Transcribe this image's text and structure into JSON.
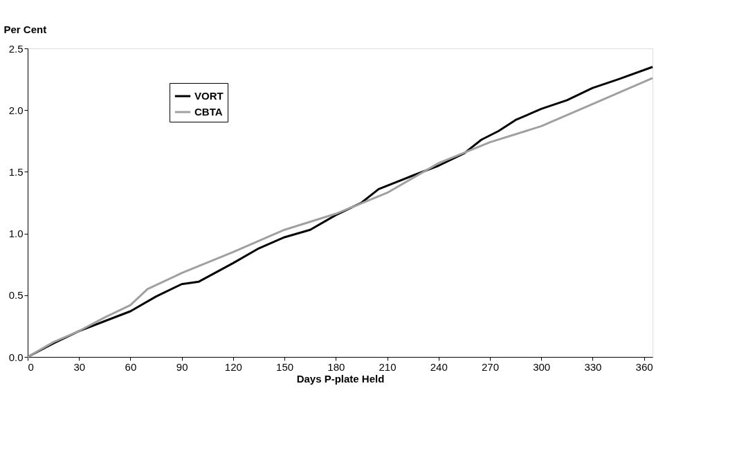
{
  "chart_data": {
    "type": "line",
    "xlabel": "Days  P-plate  Held",
    "ylabel": "Per  Cent",
    "xlim": [
      0,
      365
    ],
    "xticks": [
      0,
      30,
      60,
      90,
      120,
      150,
      180,
      210,
      240,
      270,
      300,
      330,
      360
    ],
    "ylim": [
      0,
      2.5
    ],
    "yticks": [
      {
        "value": 0,
        "label": "0.0"
      },
      0.5,
      {
        "value": 1,
        "label": "1.0"
      },
      1.5,
      {
        "value": 2,
        "label": "2.0"
      },
      2.5
    ],
    "grid": false,
    "legend": "top left",
    "marker": "none",
    "line_style": "solid",
    "series": [
      {
        "name": "VORT",
        "color": "#000000",
        "x": [
          0,
          15,
          30,
          45,
          60,
          75,
          90,
          100,
          120,
          135,
          150,
          165,
          180,
          195,
          205,
          225,
          240,
          255,
          265,
          275,
          285,
          300,
          315,
          330,
          345,
          365
        ],
        "values": [
          0,
          0.11,
          0.21,
          0.29,
          0.37,
          0.49,
          0.59,
          0.61,
          0.76,
          0.88,
          0.97,
          1.03,
          1.15,
          1.25,
          1.36,
          1.47,
          1.55,
          1.65,
          1.76,
          1.83,
          1.92,
          2.01,
          2.08,
          2.18,
          2.25,
          2.35
        ]
      },
      {
        "name": "CBTA",
        "color": "#a0a0a0",
        "x": [
          0,
          15,
          30,
          45,
          60,
          70,
          90,
          120,
          150,
          180,
          210,
          240,
          270,
          300,
          330,
          365
        ],
        "values": [
          0,
          0.12,
          0.21,
          0.32,
          0.42,
          0.55,
          0.68,
          0.85,
          1.03,
          1.16,
          1.33,
          1.57,
          1.74,
          1.87,
          2.05,
          2.26
        ]
      }
    ]
  }
}
